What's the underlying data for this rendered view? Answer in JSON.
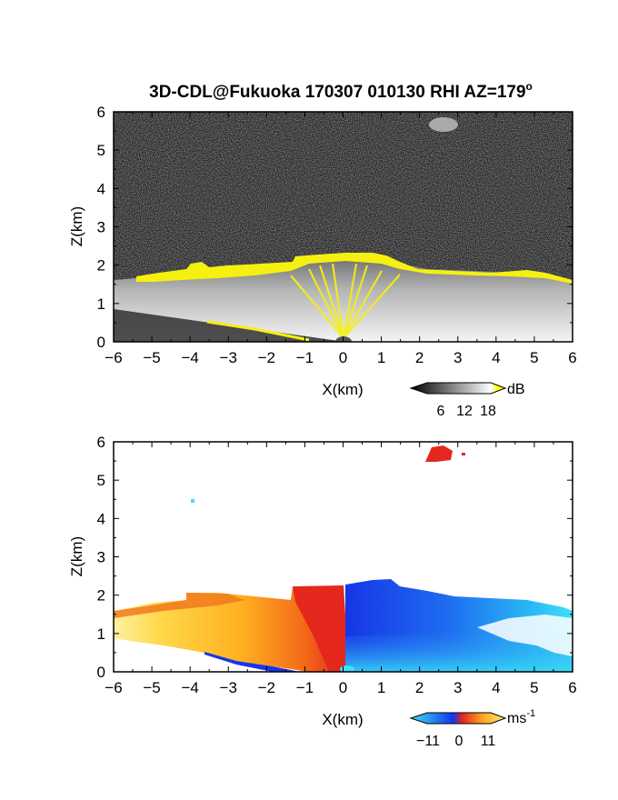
{
  "chart_data": [
    {
      "type": "heatmap",
      "title": "3D-CDL@Fukuoka 170307 010130 RHI AZ=179",
      "title_superscript": "o",
      "xlabel": "X(km)",
      "ylabel": "Z(km)",
      "xlim": [
        -6,
        6
      ],
      "ylim": [
        0,
        6
      ],
      "xticks": [
        "-6",
        "-5",
        "-4",
        "-3",
        "-2",
        "-1",
        "0",
        "1",
        "2",
        "3",
        "4",
        "5",
        "6"
      ],
      "yticks": [
        "0",
        "1",
        "2",
        "3",
        "4",
        "5",
        "6"
      ],
      "colorbar": {
        "unit": "dB",
        "ticks": [
          "6",
          "12",
          "18"
        ],
        "colormap": "grayscale-to-yellow"
      },
      "colors": {
        "background_noise": "#2a2a2a",
        "high": "#ffff00"
      },
      "features": {
        "cloud_top_km": 2.2,
        "echo_layer_top_km": [
          1.5,
          2.0
        ],
        "upper_echo_x_km": 2.5,
        "upper_echo_z_km": 5.8
      }
    },
    {
      "type": "heatmap",
      "xlabel": "X(km)",
      "ylabel": "Z(km)",
      "xlim": [
        -6,
        6
      ],
      "ylim": [
        0,
        6
      ],
      "xticks": [
        "-6",
        "-5",
        "-4",
        "-3",
        "-2",
        "-1",
        "0",
        "1",
        "2",
        "3",
        "4",
        "5",
        "6"
      ],
      "yticks": [
        "0",
        "1",
        "2",
        "3",
        "4",
        "5",
        "6"
      ],
      "colorbar": {
        "unit": "ms",
        "unit_superscript": "-1",
        "ticks": [
          "-11",
          "0",
          "11"
        ],
        "colormap": "cyan-blue-red-yellow"
      },
      "colors": {
        "negative": "#1e50f0",
        "near_zero": "#e8322a",
        "positive": "#ffd700"
      },
      "features": {
        "velocity_sign_change_x_km": 0,
        "upper_echo_x_km": 2.5,
        "upper_echo_z_km": 5.7
      }
    }
  ]
}
